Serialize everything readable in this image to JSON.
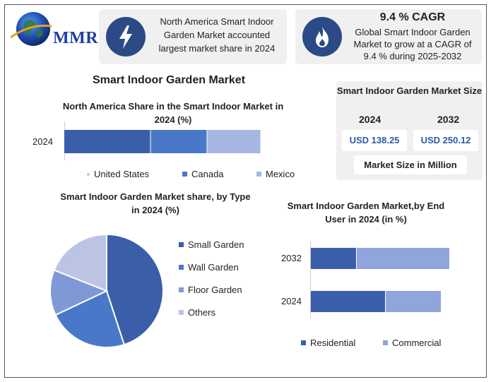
{
  "logo": {
    "text": "MMR"
  },
  "card1": {
    "icon": "lightning-icon",
    "text": "North America Smart Indoor Garden Market accounted largest market share in 2024"
  },
  "card2": {
    "icon": "flame-icon",
    "heading": "9.4 % CAGR",
    "text": "Global Smart Indoor Garden Market to grow at a CAGR of 9.4 % during 2025-2032"
  },
  "main_title": "Smart Indoor Garden Market",
  "size_panel": {
    "title": "Smart Indoor Garden Market Size",
    "year1": "2024",
    "value1": "USD 138.25",
    "year2": "2032",
    "value2": "USD 250.12",
    "footer": "Market Size in Million"
  },
  "colors": {
    "dark_blue": "#3a5ea8",
    "mid_blue": "#4a78c9",
    "light_blue": "#a6b6e2",
    "pale": "#bcc4e4",
    "icon_circle": "#2b4a86"
  },
  "chart_data": [
    {
      "type": "bar",
      "orientation": "horizontal",
      "stacked": true,
      "title": "North America Share in the Smart Indoor Market in 2024 (%)",
      "categories": [
        "2024"
      ],
      "series": [
        {
          "name": "United States",
          "values": [
            49
          ],
          "color": "#3a5ea8"
        },
        {
          "name": "Canada",
          "values": [
            32
          ],
          "color": "#4a78c9"
        },
        {
          "name": "Mexico",
          "values": [
            30
          ],
          "color": "#a6b6e2"
        }
      ],
      "legend": "bottom"
    },
    {
      "type": "pie",
      "title": "Smart Indoor Garden Market share, by Type in 2024  (%)",
      "labels": [
        "Small Garden",
        "Wall Garden",
        "Floor Garden",
        "Others"
      ],
      "values": [
        45,
        23,
        13,
        19
      ],
      "colors": [
        "#3a5ea8",
        "#4a78c9",
        "#7f98d6",
        "#bcc4e4"
      ],
      "legend": "right"
    },
    {
      "type": "bar",
      "orientation": "horizontal",
      "stacked": true,
      "title": "Smart Indoor Garden Market,by End User in 2024 (in %)",
      "categories": [
        "2032",
        "2024"
      ],
      "series": [
        {
          "name": "Residential",
          "values": [
            65,
            106
          ],
          "color": "#3a5ea8"
        },
        {
          "name": "Commercial",
          "values": [
            131,
            78
          ],
          "color": "#8fa5dc"
        }
      ],
      "legend": "bottom"
    }
  ]
}
